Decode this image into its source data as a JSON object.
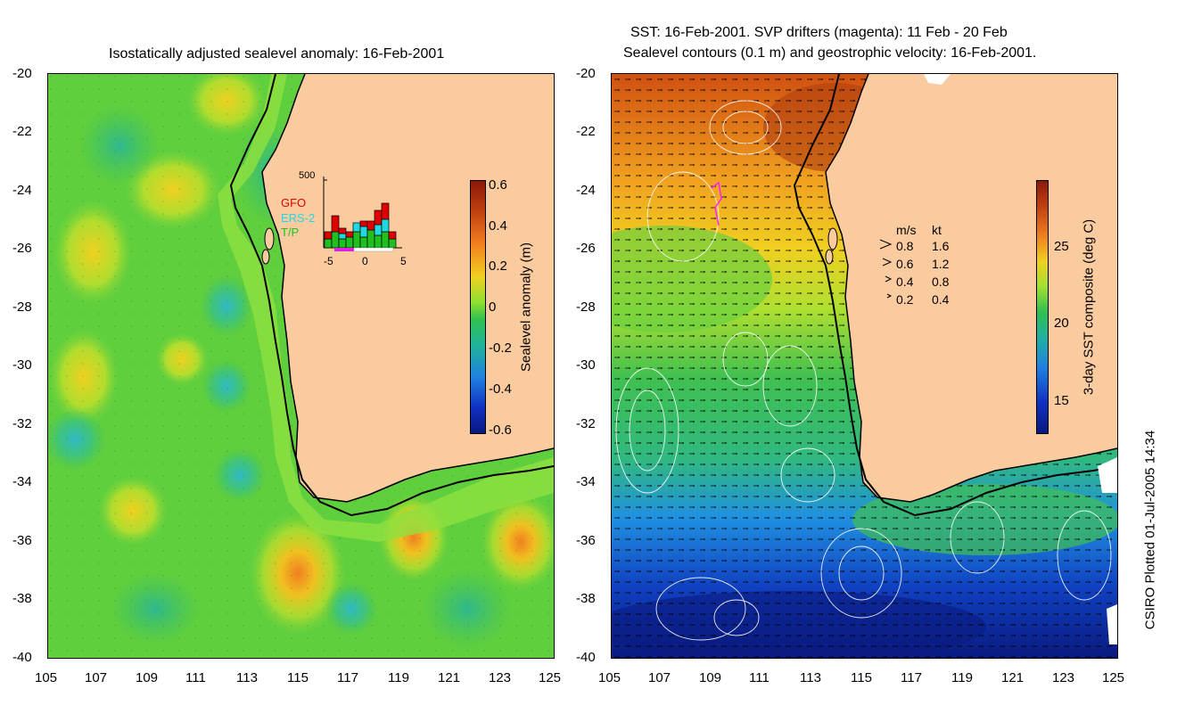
{
  "left_map": {
    "title": "Isostatically adjusted sealevel anomaly: 16-Feb-2001",
    "y_ticks": [
      "-20",
      "-22",
      "-24",
      "-26",
      "-28",
      "-30",
      "-32",
      "-34",
      "-36",
      "-38",
      "-40"
    ],
    "x_ticks": [
      "105",
      "107",
      "109",
      "111",
      "113",
      "115",
      "117",
      "119",
      "121",
      "123",
      "125"
    ],
    "colorbar": {
      "label": "Sealevel anomaly (m)",
      "ticks": [
        "0.6",
        "0.4",
        "0.2",
        "0",
        "-0.2",
        "-0.4",
        "-0.6"
      ]
    },
    "inset": {
      "ymax_label": "500",
      "legend": [
        {
          "name": "GFO",
          "color": "#e00000"
        },
        {
          "name": "ERS-2",
          "color": "#20d8e0"
        },
        {
          "name": "T/P",
          "color": "#20c020"
        }
      ],
      "x_ticks": [
        "-5",
        "0",
        "5"
      ]
    }
  },
  "right_map": {
    "title_line1": "SST: 16-Feb-2001. SVP drifters (magenta): 11 Feb - 20 Feb",
    "title_line2": "Sealevel contours (0.1 m) and geostrophic velocity: 16-Feb-2001.",
    "y_ticks": [
      "-20",
      "-22",
      "-24",
      "-26",
      "-28",
      "-30",
      "-32",
      "-34",
      "-36",
      "-38",
      "-40"
    ],
    "x_ticks": [
      "105",
      "107",
      "109",
      "111",
      "113",
      "115",
      "117",
      "119",
      "121",
      "123",
      "125"
    ],
    "colorbar": {
      "label": "3-day SST composite (deg C)",
      "ticks": [
        "25",
        "20",
        "15"
      ]
    },
    "velocity_legend": {
      "header_ms": "m/s",
      "header_kt": "kt",
      "rows": [
        {
          "ms": "0.8",
          "kt": "1.6"
        },
        {
          "ms": "0.6",
          "kt": "1.2"
        },
        {
          "ms": "0.4",
          "kt": "0.8"
        },
        {
          "ms": "0.2",
          "kt": "0.4"
        }
      ]
    }
  },
  "footer": {
    "plotted": "CSIRO Plotted 01-Jul-2005 14:34"
  },
  "colors": {
    "land": "#fbcba0",
    "ocean_green": "#5ad23c",
    "coast_line": "#000000"
  }
}
